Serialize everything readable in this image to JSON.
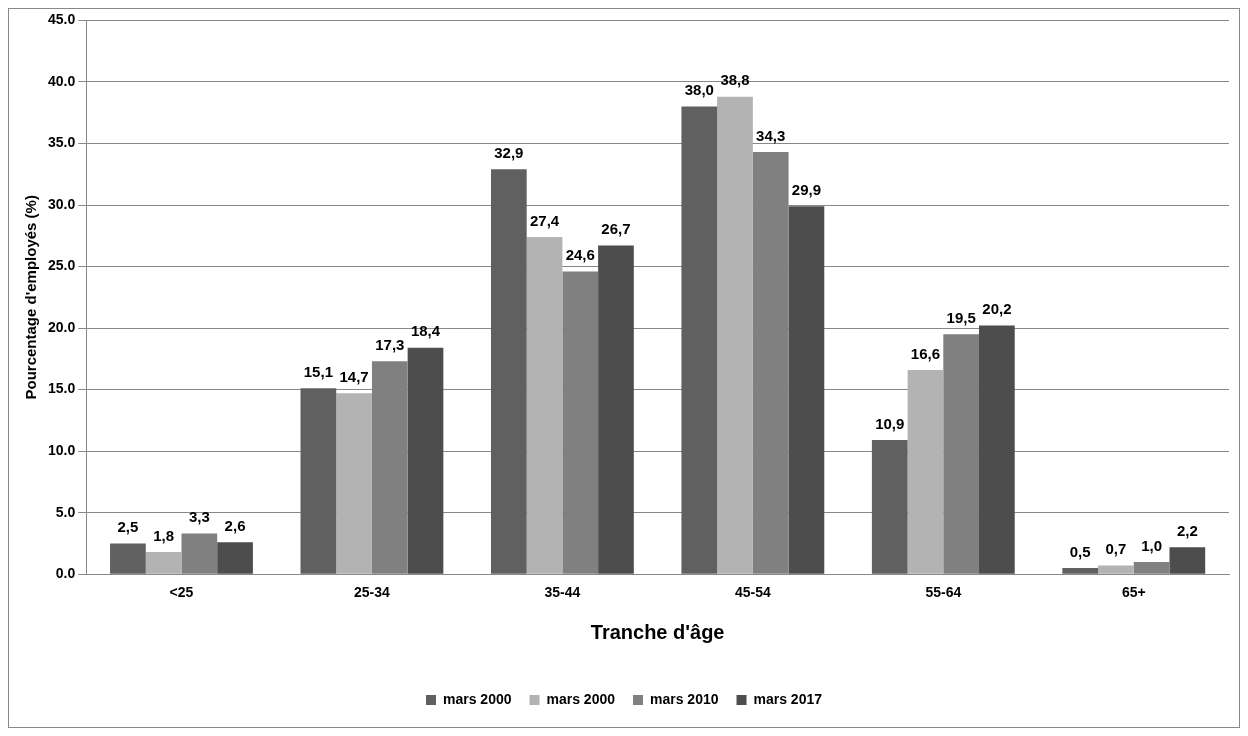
{
  "chart_data": {
    "type": "bar",
    "xlabel": "Tranche d'âge",
    "ylabel": "Pourcentage d'employés (%)",
    "categories": [
      "<25",
      "25-34",
      "35-44",
      "45-54",
      "55-64",
      "65+"
    ],
    "series": [
      {
        "name": "mars 2000",
        "color": "#606060",
        "values": [
          2.5,
          15.1,
          32.9,
          38.0,
          10.9,
          0.5
        ],
        "value_labels": [
          "2,5",
          "15,1",
          "32,9",
          "38,0",
          "10,9",
          "0,5"
        ]
      },
      {
        "name": "mars 2000",
        "color": "#b3b3b3",
        "values": [
          1.8,
          14.7,
          27.4,
          38.8,
          16.6,
          0.7
        ],
        "value_labels": [
          "1,8",
          "14,7",
          "27,4",
          "38,8",
          "16,6",
          "0,7"
        ]
      },
      {
        "name": "mars 2010",
        "color": "#808080",
        "values": [
          3.3,
          17.3,
          24.6,
          34.3,
          19.5,
          1.0
        ],
        "value_labels": [
          "3,3",
          "17,3",
          "24,6",
          "34,3",
          "19,5",
          "1,0"
        ]
      },
      {
        "name": "mars 2017",
        "color": "#4d4d4d",
        "values": [
          2.6,
          18.4,
          26.7,
          29.9,
          20.2,
          2.2
        ],
        "value_labels": [
          "2,6",
          "18,4",
          "26,7",
          "29,9",
          "20,2",
          "2,2"
        ]
      }
    ],
    "ylim": [
      0,
      45
    ],
    "yticks": [
      {
        "value": 0,
        "label": "0.0"
      },
      {
        "value": 5,
        "label": "5.0"
      },
      {
        "value": 10,
        "label": "10.0"
      },
      {
        "value": 15,
        "label": "15.0"
      },
      {
        "value": 20,
        "label": "20.0"
      },
      {
        "value": 25,
        "label": "25.0"
      },
      {
        "value": 30,
        "label": "30.0"
      },
      {
        "value": 35,
        "label": "35.0"
      },
      {
        "value": 40,
        "label": "40.0"
      },
      {
        "value": 45,
        "label": "45.0"
      }
    ],
    "grid": "y",
    "legend": "bottom"
  }
}
